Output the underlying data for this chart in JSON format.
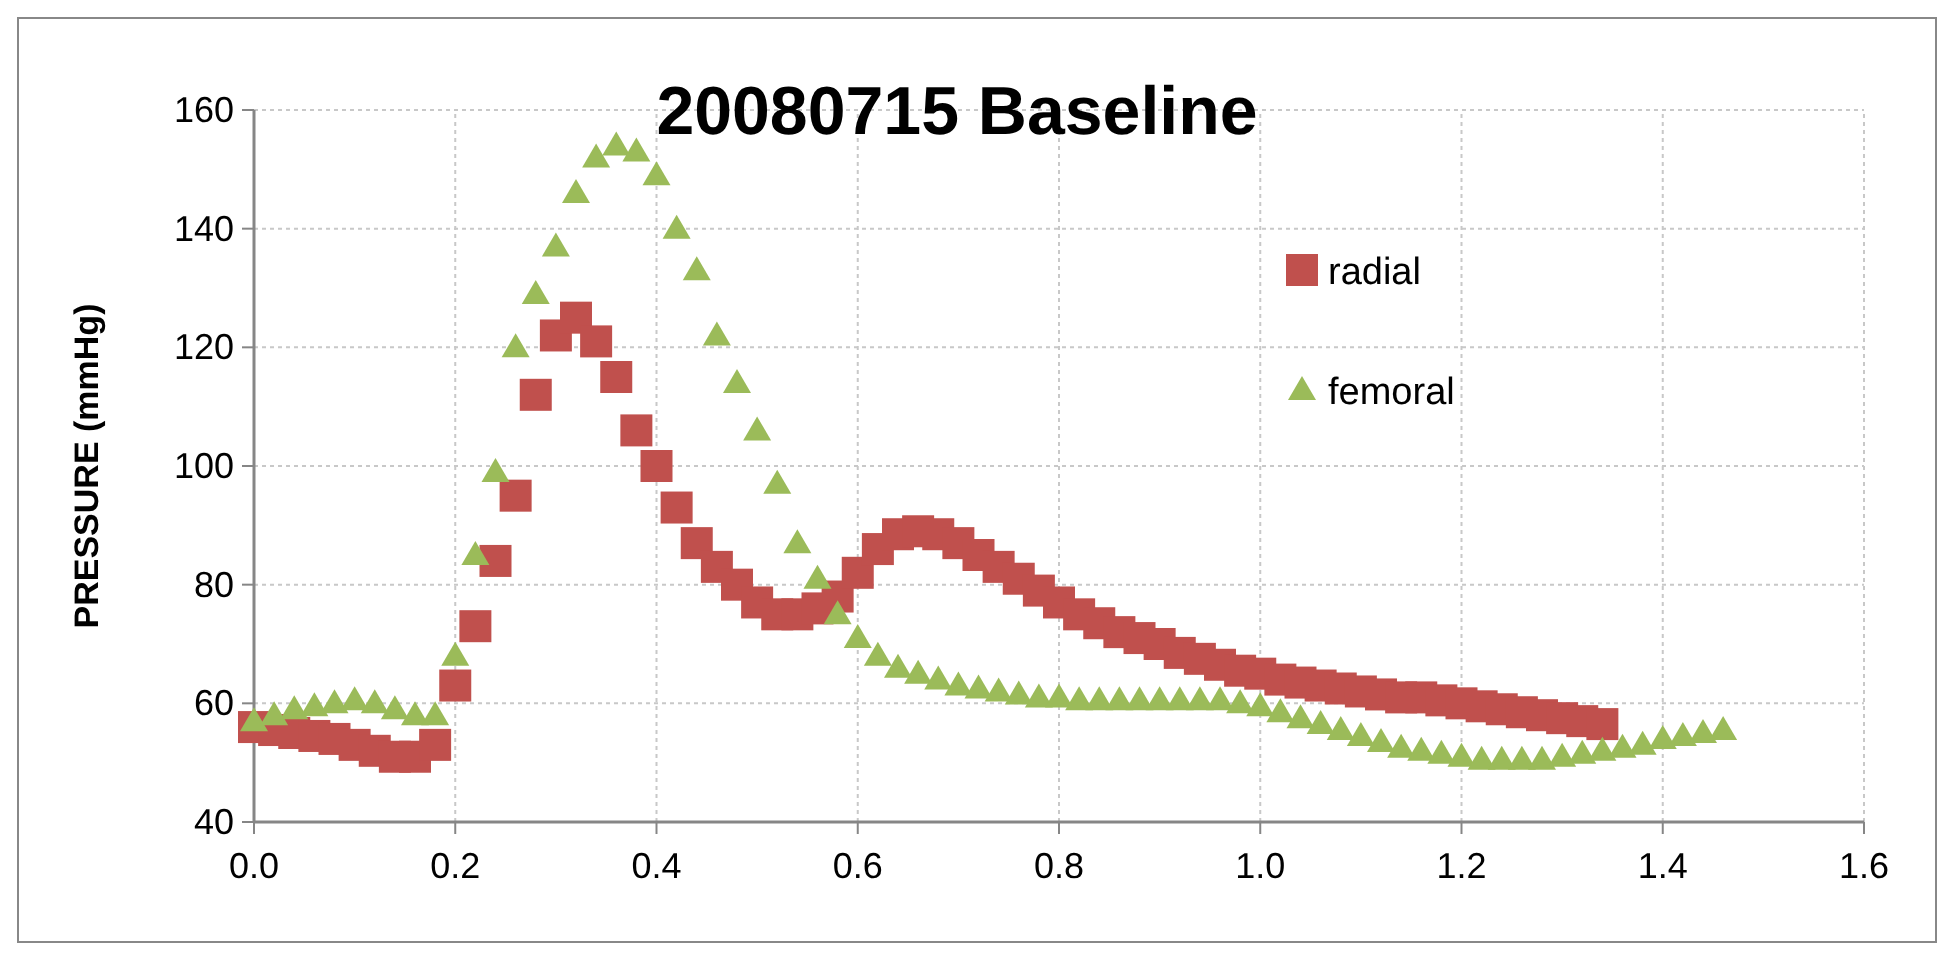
{
  "chart_data": {
    "type": "scatter",
    "title": "20080715 Baseline",
    "ylabel": "PRESSURE (mmHg)",
    "xlim": [
      0,
      1.6
    ],
    "xticks": [
      {
        "value": 0,
        "label": "0.0"
      },
      {
        "value": 0.2,
        "label": "0.2"
      },
      {
        "value": 0.4,
        "label": "0.4"
      },
      {
        "value": 0.6,
        "label": "0.6"
      },
      {
        "value": 0.8,
        "label": "0.8"
      },
      {
        "value": 1,
        "label": "1.0"
      },
      {
        "value": 1.2,
        "label": "1.2"
      },
      {
        "value": 1.4,
        "label": "1.4"
      },
      {
        "value": 1.6,
        "label": "1.6"
      }
    ],
    "ylim": [
      40,
      160
    ],
    "yticks": [
      40,
      60,
      80,
      100,
      120,
      140,
      160
    ],
    "grid": true,
    "legend": "top right",
    "series": [
      {
        "name": "radial",
        "color": "#c0504d",
        "marker": "square",
        "x": [
          0,
          0.02,
          0.04,
          0.06,
          0.08,
          0.1,
          0.12,
          0.14,
          0.16,
          0.18,
          0.2,
          0.22,
          0.24,
          0.26,
          0.28,
          0.3,
          0.32,
          0.34,
          0.36,
          0.38,
          0.4,
          0.42,
          0.44,
          0.46,
          0.48,
          0.5,
          0.52,
          0.54,
          0.56,
          0.58,
          0.6,
          0.62,
          0.64,
          0.66,
          0.68,
          0.7,
          0.72,
          0.74,
          0.76,
          0.78,
          0.8,
          0.82,
          0.84,
          0.86,
          0.88,
          0.9,
          0.92,
          0.94,
          0.96,
          0.98,
          1,
          1.02,
          1.04,
          1.06,
          1.08,
          1.1,
          1.12,
          1.14,
          1.16,
          1.18,
          1.2,
          1.22,
          1.24,
          1.26,
          1.28,
          1.3,
          1.32,
          1.34
        ],
        "values": [
          56,
          55.5,
          55,
          54.5,
          54,
          53,
          52,
          51,
          51,
          53,
          63,
          73,
          84,
          95,
          112,
          122,
          125,
          121,
          115,
          106,
          100,
          93,
          87,
          83,
          80,
          77,
          75,
          75,
          76,
          78,
          82,
          86,
          88.5,
          89,
          88.5,
          87,
          85,
          83,
          81,
          79,
          77,
          75,
          73.5,
          72,
          71,
          70,
          68.5,
          67.5,
          66.5,
          65.5,
          65,
          64,
          63.5,
          63,
          62.5,
          62,
          61.5,
          61,
          61,
          60.5,
          60,
          59.5,
          59,
          58.5,
          58,
          57.5,
          57,
          56.5
        ]
      },
      {
        "name": "femoral",
        "color": "#9bbb59",
        "marker": "triangle",
        "x": [
          0,
          0.02,
          0.04,
          0.06,
          0.08,
          0.1,
          0.12,
          0.14,
          0.16,
          0.18,
          0.2,
          0.22,
          0.24,
          0.26,
          0.28,
          0.3,
          0.32,
          0.34,
          0.36,
          0.38,
          0.4,
          0.42,
          0.44,
          0.46,
          0.48,
          0.5,
          0.52,
          0.54,
          0.56,
          0.58,
          0.6,
          0.62,
          0.64,
          0.66,
          0.68,
          0.7,
          0.72,
          0.74,
          0.76,
          0.78,
          0.8,
          0.82,
          0.84,
          0.86,
          0.88,
          0.9,
          0.92,
          0.94,
          0.96,
          0.98,
          1,
          1.02,
          1.04,
          1.06,
          1.08,
          1.1,
          1.12,
          1.14,
          1.16,
          1.18,
          1.2,
          1.22,
          1.24,
          1.26,
          1.28,
          1.3,
          1.32,
          1.34,
          1.36,
          1.38,
          1.4,
          1.42,
          1.44,
          1.46
        ],
        "values": [
          57,
          58,
          59,
          59.5,
          60,
          60.5,
          60,
          59,
          58,
          58,
          68,
          85,
          99,
          120,
          129,
          137,
          146,
          152,
          154,
          153,
          149,
          140,
          133,
          122,
          114,
          106,
          97,
          87,
          81,
          75,
          71,
          68,
          66,
          65,
          64,
          63,
          62.5,
          62,
          61.5,
          61,
          61,
          60.5,
          60.5,
          60.5,
          60.5,
          60.5,
          60.5,
          60.5,
          60.5,
          60,
          59.5,
          58.5,
          57.5,
          56.5,
          55.5,
          54.5,
          53.5,
          52.5,
          52,
          51.5,
          51,
          50.5,
          50.5,
          50.5,
          50.5,
          51,
          51.5,
          52,
          52.5,
          53,
          54,
          54.5,
          55,
          55.5
        ]
      }
    ]
  }
}
